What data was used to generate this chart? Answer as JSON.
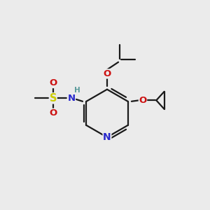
{
  "bg_color": "#ebebeb",
  "bond_color": "#1a1a1a",
  "bond_width": 1.6,
  "atom_colors": {
    "N_ring": "#2828cc",
    "N_nh": "#2828cc",
    "O": "#cc1111",
    "S": "#cccc00",
    "H": "#5a9a9a",
    "C": "#1a1a1a"
  },
  "font_size_main": 9.5,
  "font_size_small": 8.0,
  "font_size_label": 7.5
}
